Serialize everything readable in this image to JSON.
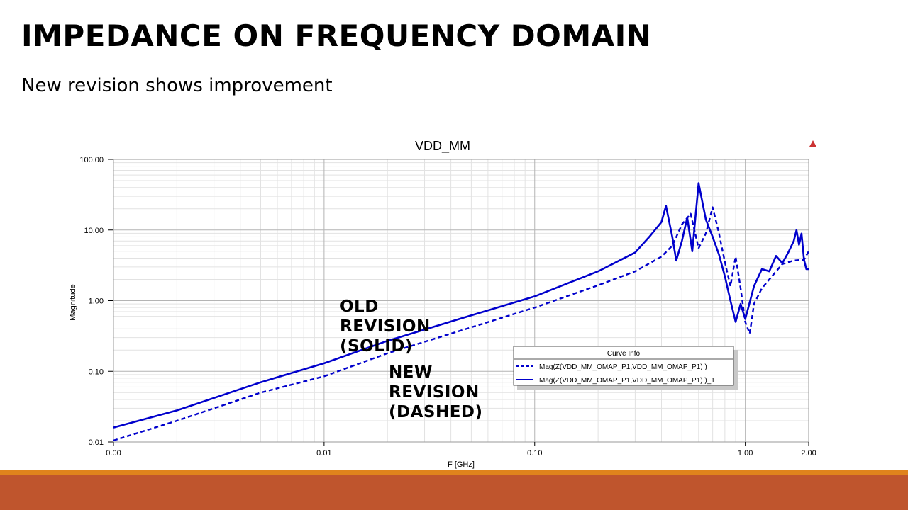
{
  "slide": {
    "title": "IMPEDANCE ON FREQUENCY DOMAIN",
    "subtitle": "New revision shows improvement",
    "annotation_old": "OLD\nREVISION\n(SOLID)",
    "annotation_new": "NEW\nREVISION\n(DASHED)"
  },
  "colors": {
    "series": "#0000cc",
    "grid_major": "#b4b4b4",
    "grid_minor": "#e2e2e2",
    "footer_line": "#e0831c",
    "footer_band": "#bf552d",
    "marker": "#cc3333"
  },
  "chart_data": {
    "type": "line",
    "title": "VDD_MM",
    "xlabel": "F [GHz]",
    "ylabel": "Magnitude",
    "x_scale": "log",
    "y_scale": "log",
    "xlim": [
      0.001,
      2.0
    ],
    "ylim": [
      0.01,
      100
    ],
    "x_tick_values": [
      0.001,
      0.01,
      0.1,
      1.0,
      2.0
    ],
    "x_tick_labels": [
      "0.00",
      "0.01",
      "0.10",
      "1.00",
      "2.00"
    ],
    "y_tick_values": [
      0.01,
      0.1,
      1,
      10,
      100
    ],
    "y_tick_labels": [
      "0.01",
      "0.10",
      "1.00",
      "10.00",
      "100.00"
    ],
    "grid": true,
    "legend": {
      "title": "Curve Info",
      "placement": "bottom-right"
    },
    "series": [
      {
        "name": "Mag(Z(VDD_MM_OMAP_P1,VDD_MM_OMAP_P1) )",
        "style": "dashed",
        "x": [
          0.001,
          0.002,
          0.005,
          0.01,
          0.02,
          0.05,
          0.1,
          0.2,
          0.3,
          0.4,
          0.45,
          0.5,
          0.55,
          0.6,
          0.65,
          0.7,
          0.75,
          0.8,
          0.85,
          0.9,
          0.95,
          1.0,
          1.05,
          1.1,
          1.2,
          1.3,
          1.5,
          1.7,
          1.9,
          2.0
        ],
        "y": [
          0.0105,
          0.02,
          0.05,
          0.085,
          0.18,
          0.42,
          0.8,
          1.65,
          2.6,
          4.2,
          6.0,
          12.0,
          17.0,
          5.5,
          9.0,
          21.0,
          9.0,
          3.5,
          1.6,
          4.2,
          1.5,
          0.5,
          0.34,
          0.9,
          1.5,
          2.0,
          3.3,
          3.7,
          3.8,
          5.0
        ]
      },
      {
        "name": "Mag(Z(VDD_MM_OMAP_P1,VDD_MM_OMAP_P1) )_1",
        "style": "solid",
        "x": [
          0.001,
          0.002,
          0.005,
          0.01,
          0.02,
          0.05,
          0.1,
          0.2,
          0.3,
          0.35,
          0.4,
          0.42,
          0.45,
          0.47,
          0.5,
          0.53,
          0.56,
          0.6,
          0.65,
          0.7,
          0.75,
          0.8,
          0.85,
          0.9,
          0.95,
          1.0,
          1.05,
          1.1,
          1.2,
          1.3,
          1.4,
          1.5,
          1.6,
          1.7,
          1.75,
          1.8,
          1.85,
          1.9,
          1.95,
          2.0
        ],
        "y": [
          0.016,
          0.028,
          0.07,
          0.13,
          0.27,
          0.62,
          1.15,
          2.6,
          4.8,
          8.0,
          13.0,
          22.0,
          8.0,
          3.7,
          7.0,
          15.0,
          5.0,
          46.0,
          14.0,
          8.0,
          4.5,
          2.2,
          1.0,
          0.5,
          0.9,
          0.55,
          0.95,
          1.6,
          2.8,
          2.6,
          4.3,
          3.4,
          4.8,
          7.0,
          10.0,
          6.2,
          8.9,
          3.8,
          2.8,
          2.8
        ]
      }
    ]
  }
}
